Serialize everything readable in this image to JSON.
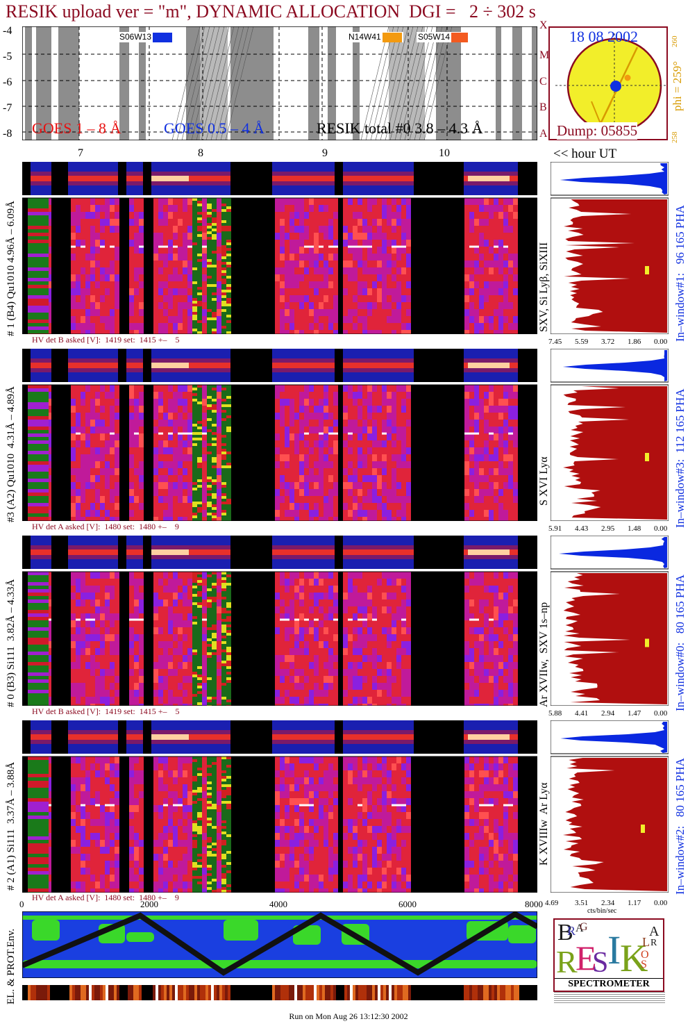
{
  "title": "RESIK upload ver = \"m\", DYNAMIC ALLOCATION  DGI =   2 ÷ 302 s",
  "colors": {
    "title": "#8b0a20",
    "goes_long": "#e81010",
    "goes_short": "#1030e0",
    "resik": "#111111",
    "sun": "#f2ee2a",
    "rim": "#8b0a20",
    "phi": "#d89a00",
    "pha": "#0a28e0",
    "hist": "#b00f0f"
  },
  "lightcurve": {
    "y_ticks": [
      "-4",
      "-5",
      "-6",
      "-7",
      "-8"
    ],
    "class_letters": [
      "X",
      "M",
      "C",
      "B",
      "A"
    ],
    "legend_goes_long": "GOES 1 – 8 Å",
    "legend_goes_short": "GOES 0.5 – 4 Å",
    "legend_resik": "RESIK total #0  3.8 – 4.3 Å",
    "flare_tags": [
      "S06W13",
      "N14W41",
      "S05W14"
    ],
    "hour_ticks": [
      "7",
      "8",
      "9",
      "10"
    ],
    "hour_caption": "<< hour UT"
  },
  "sun_disk": {
    "date": "18 08 2002",
    "dump": "Dump: 05855",
    "phi": "phi = 259°",
    "phi_top": "260",
    "phi_bottom": "258"
  },
  "panels": [
    {
      "id": "p1",
      "left_label": "# 1 (B4) Qu1010 4.96Å – 6.09Å",
      "line_ids": "SXV, Si Lyβ, SiXIII",
      "window": "In–window#1:   96 165 PHA",
      "hv": "HV det B asked [V]:  1419 set:  1415 +–    5",
      "hist_ticks": [
        "7.45",
        "5.59",
        "3.72",
        "1.86",
        "0.00"
      ]
    },
    {
      "id": "p3",
      "left_label": "#3 (A2) Qu1010  4.31Å – 4.89Å",
      "line_ids": "S XVI Lyα",
      "window": "In–window#3:  112 165 PHA",
      "hv": "HV det A asked [V]:  1480 set:  1480 +–    9",
      "hist_ticks": [
        "5.91",
        "4.43",
        "2.95",
        "1.48",
        "0.00"
      ]
    },
    {
      "id": "p0",
      "left_label": "# 0 (B3) Si111  3.82Å – 4.33Å",
      "line_ids": "Ar XVIIw,  SXV 1s–np",
      "window": "In–window#0:   80 165 PHA",
      "hv": "HV det B asked [V]:  1419 set:  1415 +–    5",
      "hist_ticks": [
        "5.88",
        "4.41",
        "2.94",
        "1.47",
        "0.00"
      ]
    },
    {
      "id": "p2",
      "left_label": "# 2 (A1) Si111  3.37Å – 3.88Å",
      "line_ids": "K XVIIIw  Ar Lyα",
      "window": "In–window#2:   80 165 PHA",
      "hv": "HV det A asked [V]:  1480 set:  1480 +–    9",
      "hist_ticks": [
        "4.69",
        "3.51",
        "2.34",
        "1.17",
        "0.00"
      ]
    }
  ],
  "x_ticks": [
    "0",
    "2000",
    "4000",
    "6000",
    "8000"
  ],
  "hist_xlabel": "cts/bin/sec",
  "env_label": "EL. & PROT.Env.",
  "logo": {
    "caption": "SPECTROMETER",
    "letters": [
      "B",
      "R",
      "A",
      "G",
      "R",
      "E",
      "S",
      "I",
      "K",
      "S",
      "O",
      "L",
      "A",
      "R"
    ]
  },
  "footer": "Run on Mon Aug 26 13:12:30 2002"
}
